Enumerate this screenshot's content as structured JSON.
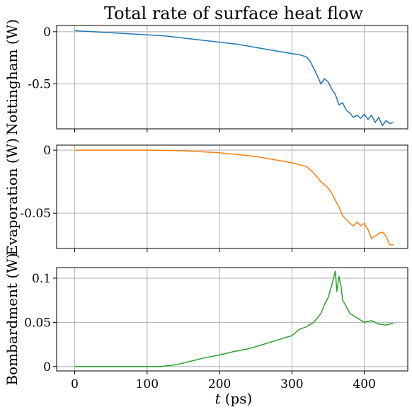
{
  "chart_data": {
    "type": "line",
    "title": "Total rate of surface heat flow",
    "xlabel_var": "t",
    "xlabel_unit": "(ps)",
    "x_ticks": [
      0,
      100,
      200,
      300,
      400
    ],
    "xlim": [
      -25,
      460
    ],
    "grid": true,
    "panels": [
      {
        "ylabel": "Nottingham (W)",
        "color": "#1f77b4",
        "ylim": [
          -0.93,
          0.06
        ],
        "y_ticks": [
          0,
          -0.5
        ],
        "y_tick_labels": [
          "0",
          "-0.5"
        ],
        "x": [
          0,
          25,
          50,
          75,
          100,
          125,
          150,
          175,
          200,
          225,
          250,
          275,
          300,
          310,
          320,
          325,
          330,
          335,
          340,
          345,
          350,
          355,
          360,
          365,
          370,
          375,
          380,
          385,
          390,
          395,
          400,
          405,
          410,
          415,
          420,
          425,
          430,
          435,
          440
        ],
        "y": [
          0.01,
          0.0,
          -0.01,
          -0.02,
          -0.03,
          -0.04,
          -0.06,
          -0.08,
          -0.1,
          -0.12,
          -0.15,
          -0.18,
          -0.21,
          -0.22,
          -0.24,
          -0.28,
          -0.35,
          -0.42,
          -0.5,
          -0.45,
          -0.48,
          -0.55,
          -0.6,
          -0.7,
          -0.68,
          -0.75,
          -0.78,
          -0.82,
          -0.8,
          -0.83,
          -0.79,
          -0.84,
          -0.8,
          -0.87,
          -0.82,
          -0.9,
          -0.85,
          -0.88,
          -0.87
        ]
      },
      {
        "ylabel": "Evaporation (W)",
        "color": "#ff7f0e",
        "ylim": [
          -0.078,
          0.004
        ],
        "y_ticks": [
          0,
          -0.05
        ],
        "y_tick_labels": [
          "0",
          "-0.05"
        ],
        "x": [
          0,
          50,
          100,
          150,
          200,
          250,
          280,
          300,
          320,
          330,
          340,
          350,
          355,
          360,
          365,
          370,
          375,
          380,
          385,
          390,
          395,
          400,
          405,
          410,
          415,
          420,
          425,
          430,
          435,
          440
        ],
        "y": [
          0.0,
          0.0,
          0.0,
          -0.0005,
          -0.002,
          -0.005,
          -0.008,
          -0.01,
          -0.013,
          -0.018,
          -0.025,
          -0.03,
          -0.034,
          -0.04,
          -0.045,
          -0.052,
          -0.055,
          -0.058,
          -0.06,
          -0.057,
          -0.06,
          -0.058,
          -0.063,
          -0.07,
          -0.068,
          -0.066,
          -0.065,
          -0.068,
          -0.075,
          -0.075
        ]
      },
      {
        "ylabel": "Bombardment (W)",
        "color": "#2ca02c",
        "ylim": [
          -0.005,
          0.112
        ],
        "y_ticks": [
          0,
          0.05,
          0.1
        ],
        "y_tick_labels": [
          "0",
          "0.05",
          "0.1"
        ],
        "x": [
          0,
          50,
          100,
          120,
          140,
          160,
          180,
          200,
          220,
          240,
          260,
          280,
          300,
          310,
          320,
          330,
          340,
          345,
          350,
          355,
          360,
          362,
          365,
          368,
          370,
          375,
          380,
          390,
          400,
          410,
          420,
          430,
          440
        ],
        "y": [
          0.0,
          0.0,
          0.0,
          0.0,
          0.002,
          0.006,
          0.01,
          0.013,
          0.017,
          0.02,
          0.025,
          0.03,
          0.035,
          0.042,
          0.045,
          0.05,
          0.06,
          0.07,
          0.078,
          0.092,
          0.108,
          0.085,
          0.102,
          0.09,
          0.075,
          0.068,
          0.06,
          0.055,
          0.05,
          0.052,
          0.048,
          0.047,
          0.049
        ]
      }
    ]
  }
}
